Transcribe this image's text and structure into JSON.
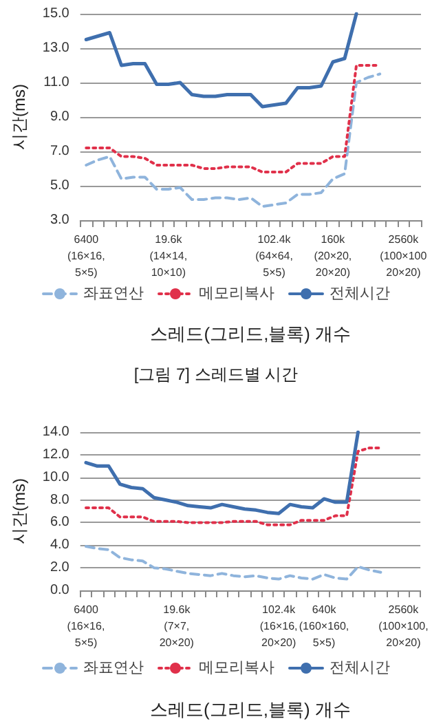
{
  "chart_data": [
    {
      "type": "line",
      "ylabel": "시간(ms)",
      "xlabel": "스레드(그리드,블록) 개수",
      "annotations": [
        "[그림 7] 스레드별 시간"
      ],
      "categories": [
        "6400\n(16×16,\n5×5)",
        null,
        null,
        null,
        null,
        null,
        null,
        "19.6k\n(14×14,\n10×10)",
        null,
        null,
        null,
        null,
        null,
        null,
        null,
        null,
        "102.4k\n(64×64,\n5×5)",
        null,
        null,
        null,
        null,
        "160k\n(20×20,\n20×20)",
        null,
        null,
        null,
        null,
        null,
        "2560k\n(100×100\n20×20)",
        null
      ],
      "ylim": [
        3,
        15
      ],
      "yticks": [
        {
          "value": 3,
          "label": "3.0"
        },
        {
          "value": 5,
          "label": "5.0"
        },
        {
          "value": 7,
          "label": "7.0"
        },
        {
          "value": 9,
          "label": "9.0"
        },
        {
          "value": 11,
          "label": "11.0"
        },
        {
          "value": 13,
          "label": "13.0"
        },
        {
          "value": 15,
          "label": "15.0"
        }
      ],
      "grid": "y",
      "legend": "bottom",
      "marker": "none",
      "series": [
        {
          "name": "좌표연산",
          "color": "#8fb4dc",
          "line_style": "dashed",
          "values": [
            6.2,
            6.5,
            6.7,
            5.4,
            5.5,
            5.5,
            4.8,
            4.8,
            4.9,
            4.2,
            4.2,
            4.3,
            4.3,
            4.2,
            4.3,
            3.8,
            3.9,
            4.0,
            4.5,
            4.5,
            4.6,
            5.4,
            5.7,
            11.0,
            11.3,
            11.5,
            null,
            null,
            null
          ]
        },
        {
          "name": "메모리복사",
          "color": "#e0304a",
          "line_style": "dotted",
          "values": [
            7.2,
            7.2,
            7.2,
            6.7,
            6.7,
            6.6,
            6.2,
            6.2,
            6.2,
            6.2,
            6.0,
            6.0,
            6.1,
            6.1,
            6.1,
            5.8,
            5.8,
            5.8,
            6.3,
            6.3,
            6.3,
            6.7,
            6.7,
            12.0,
            12.0,
            12.0,
            null,
            null,
            null
          ]
        },
        {
          "name": "전체시간",
          "color": "#3f6fae",
          "line_style": "solid",
          "values": [
            13.5,
            13.7,
            13.9,
            12.0,
            12.1,
            12.1,
            10.9,
            10.9,
            11.0,
            10.3,
            10.2,
            10.2,
            10.3,
            10.3,
            10.3,
            9.6,
            9.7,
            9.8,
            10.7,
            10.7,
            10.8,
            12.2,
            12.4,
            15.0,
            null,
            null,
            null,
            null,
            null
          ]
        }
      ]
    },
    {
      "type": "line",
      "ylabel": "시간(ms)",
      "xlabel": "스레드(그리드,블록) 개수",
      "categories": [
        "6400\n(16×16,\n5×5)",
        null,
        null,
        null,
        null,
        null,
        null,
        null,
        "19.6k\n(7×7,\n20×20)",
        null,
        null,
        null,
        null,
        null,
        null,
        null,
        null,
        "102.4k\n(16×16,\n20×20)",
        null,
        null,
        null,
        "640k\n(160×160,\n5×5)",
        null,
        null,
        null,
        null,
        null,
        null,
        "2560k\n(100×100,\n20×20)",
        null
      ],
      "ylim": [
        0,
        14
      ],
      "yticks": [
        {
          "value": 0,
          "label": "0.0"
        },
        {
          "value": 2,
          "label": "2.0"
        },
        {
          "value": 4,
          "label": "4.0"
        },
        {
          "value": 6,
          "label": "6.0"
        },
        {
          "value": 8,
          "label": "8.0"
        },
        {
          "value": 10,
          "label": "10.0"
        },
        {
          "value": 12,
          "label": "12.0"
        },
        {
          "value": 14,
          "label": "14.0"
        }
      ],
      "grid": "y",
      "legend": "bottom",
      "marker": "none",
      "series": [
        {
          "name": "좌표연산",
          "color": "#8fb4dc",
          "line_style": "dashed",
          "values": [
            3.9,
            3.7,
            3.6,
            2.9,
            2.7,
            2.6,
            2.0,
            1.9,
            1.7,
            1.5,
            1.4,
            1.3,
            1.5,
            1.3,
            1.2,
            1.3,
            1.1,
            1.0,
            1.3,
            1.1,
            1.0,
            1.4,
            1.1,
            1.0,
            2.1,
            1.8,
            1.6,
            null,
            null,
            null
          ]
        },
        {
          "name": "메모리복사",
          "color": "#e0304a",
          "line_style": "dotted",
          "values": [
            7.3,
            7.3,
            7.3,
            6.5,
            6.5,
            6.5,
            6.1,
            6.1,
            6.1,
            6.0,
            6.0,
            6.0,
            6.0,
            6.1,
            6.1,
            6.1,
            5.8,
            5.8,
            5.8,
            6.2,
            6.2,
            6.2,
            6.6,
            6.6,
            12.3,
            12.6,
            12.6,
            null,
            null,
            null
          ]
        },
        {
          "name": "전체시간",
          "color": "#3f6fae",
          "line_style": "solid",
          "values": [
            11.3,
            11.0,
            11.0,
            9.4,
            9.1,
            9.0,
            8.2,
            8.0,
            7.8,
            7.5,
            7.4,
            7.3,
            7.6,
            7.4,
            7.2,
            7.1,
            6.9,
            6.8,
            7.6,
            7.4,
            7.3,
            8.1,
            7.8,
            7.8,
            14.0,
            null,
            null,
            null,
            null,
            null
          ]
        }
      ]
    }
  ]
}
